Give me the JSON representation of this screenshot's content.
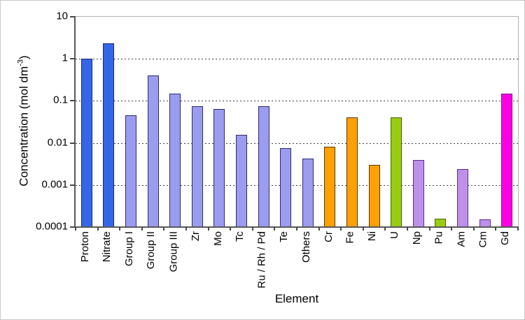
{
  "figure": {
    "background": "#ffffff",
    "frame_color": "#b2b2b2",
    "axis_color": "#595959"
  },
  "chart_data": {
    "type": "bar",
    "title": "",
    "xlabel": "Element",
    "ylabel": {
      "main": "Concentration (mol dm",
      "sup": "-3",
      "close": ")"
    },
    "yscale": "log",
    "ylim": [
      0.0001,
      10
    ],
    "grid": true,
    "grid_style": "dotted",
    "legend": false,
    "yticks": [
      {
        "label": "10",
        "value": 10
      },
      {
        "label": "1",
        "value": 1
      },
      {
        "label": "0.1",
        "value": 0.1
      },
      {
        "label": "0.01",
        "value": 0.01
      },
      {
        "label": "0.001",
        "value": 0.001
      },
      {
        "label": "0.0001",
        "value": 0.0001
      }
    ],
    "gridline_values": [
      1,
      0.1,
      0.01,
      0.001
    ],
    "palette": {
      "blue": {
        "fill": "#3566EA",
        "border": "#1b2a66"
      },
      "periwinkle": {
        "fill": "#9B9BEF",
        "border": "#2d2d6b"
      },
      "orange": {
        "fill": "#FFA005",
        "border": "#573a00"
      },
      "green": {
        "fill": "#9ACC11",
        "border": "#48650a"
      },
      "lilac": {
        "fill": "#BE90EA",
        "border": "#5a2d8f"
      },
      "magenta": {
        "fill": "#FA00E6",
        "border": "#8d0a80"
      }
    },
    "bars": [
      {
        "label": "Proton",
        "value": 1.0,
        "color_group": "blue"
      },
      {
        "label": "Nitrate",
        "value": 2.3,
        "color_group": "blue"
      },
      {
        "label": "Group I",
        "value": 0.046,
        "color_group": "periwinkle"
      },
      {
        "label": "Group II",
        "value": 0.4,
        "color_group": "periwinkle"
      },
      {
        "label": "Group III",
        "value": 0.15,
        "color_group": "periwinkle"
      },
      {
        "label": "Zr",
        "value": 0.074,
        "color_group": "periwinkle"
      },
      {
        "label": "Mo",
        "value": 0.065,
        "color_group": "periwinkle"
      },
      {
        "label": "Tc",
        "value": 0.0155,
        "color_group": "periwinkle"
      },
      {
        "label": "Ru / Rh / Pd",
        "value": 0.076,
        "color_group": "periwinkle"
      },
      {
        "label": "Te",
        "value": 0.0075,
        "color_group": "periwinkle"
      },
      {
        "label": "Others",
        "value": 0.0042,
        "color_group": "periwinkle"
      },
      {
        "label": "Cr",
        "value": 0.008,
        "color_group": "orange"
      },
      {
        "label": "Fe",
        "value": 0.04,
        "color_group": "orange"
      },
      {
        "label": "Ni",
        "value": 0.003,
        "color_group": "orange"
      },
      {
        "label": "U",
        "value": 0.04,
        "color_group": "green"
      },
      {
        "label": "Np",
        "value": 0.004,
        "color_group": "lilac"
      },
      {
        "label": "Pu",
        "value": 0.00016,
        "color_group": "green"
      },
      {
        "label": "Am",
        "value": 0.0024,
        "color_group": "lilac"
      },
      {
        "label": "Cm",
        "value": 0.00015,
        "color_group": "lilac"
      },
      {
        "label": "Gd",
        "value": 0.15,
        "color_group": "magenta"
      }
    ]
  }
}
